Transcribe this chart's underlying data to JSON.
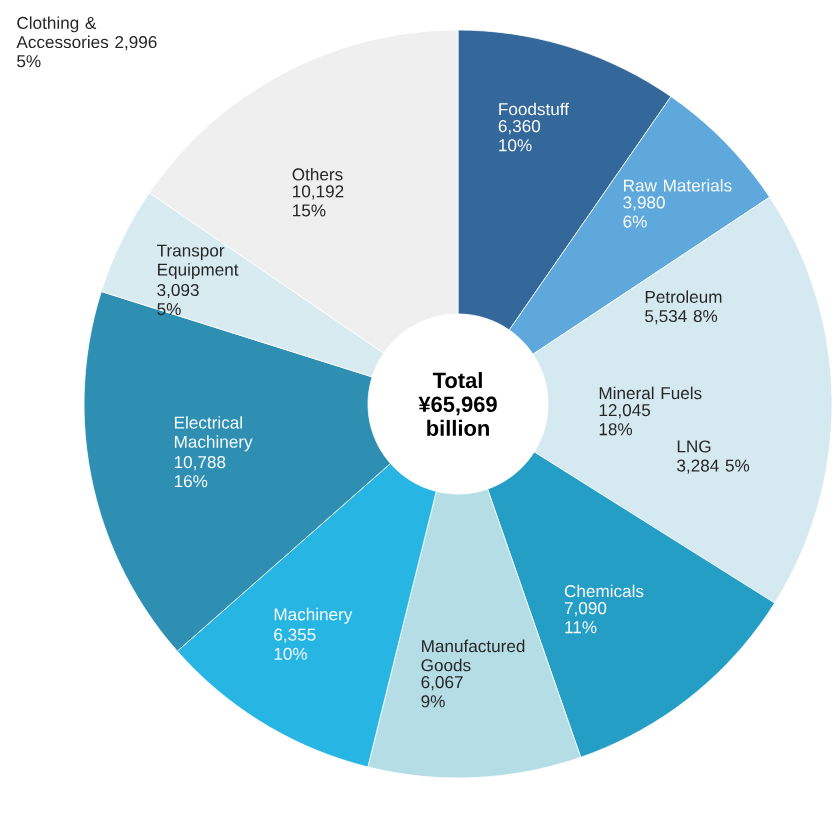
{
  "chart_data": {
    "type": "donut",
    "title": "Total ¥65,969 billion",
    "categories": [
      "Foodstuff",
      "Raw Materials",
      "Mineral Fuels",
      "Chemicals",
      "Manufactured Goods",
      "Machinery",
      "Electrical Machinery",
      "Transpor Equipment",
      "Others"
    ],
    "values": [
      6360,
      3980,
      12045,
      7090,
      6067,
      6355,
      10788,
      3093,
      10192
    ],
    "value_labels": [
      "6,360 10%",
      "3,980 6%",
      "12,045 18%",
      "7,090 11%",
      "6,067 9%",
      "6,355 10%",
      "10,788 16%",
      "3,093 5%",
      "10,192 15%"
    ],
    "colors": [
      "#35689a",
      "#5ea8dc",
      "#d5e9f0",
      "#259ec6",
      "#b5dde6",
      "#27b6e3",
      "#2e8fb3",
      "#d7ebf1",
      "#efefef"
    ],
    "annotations": [
      "Petroleum 5,534 8%",
      "LNG 3,284 5%",
      "Clothing & Accessories 2,996 5%"
    ]
  }
}
